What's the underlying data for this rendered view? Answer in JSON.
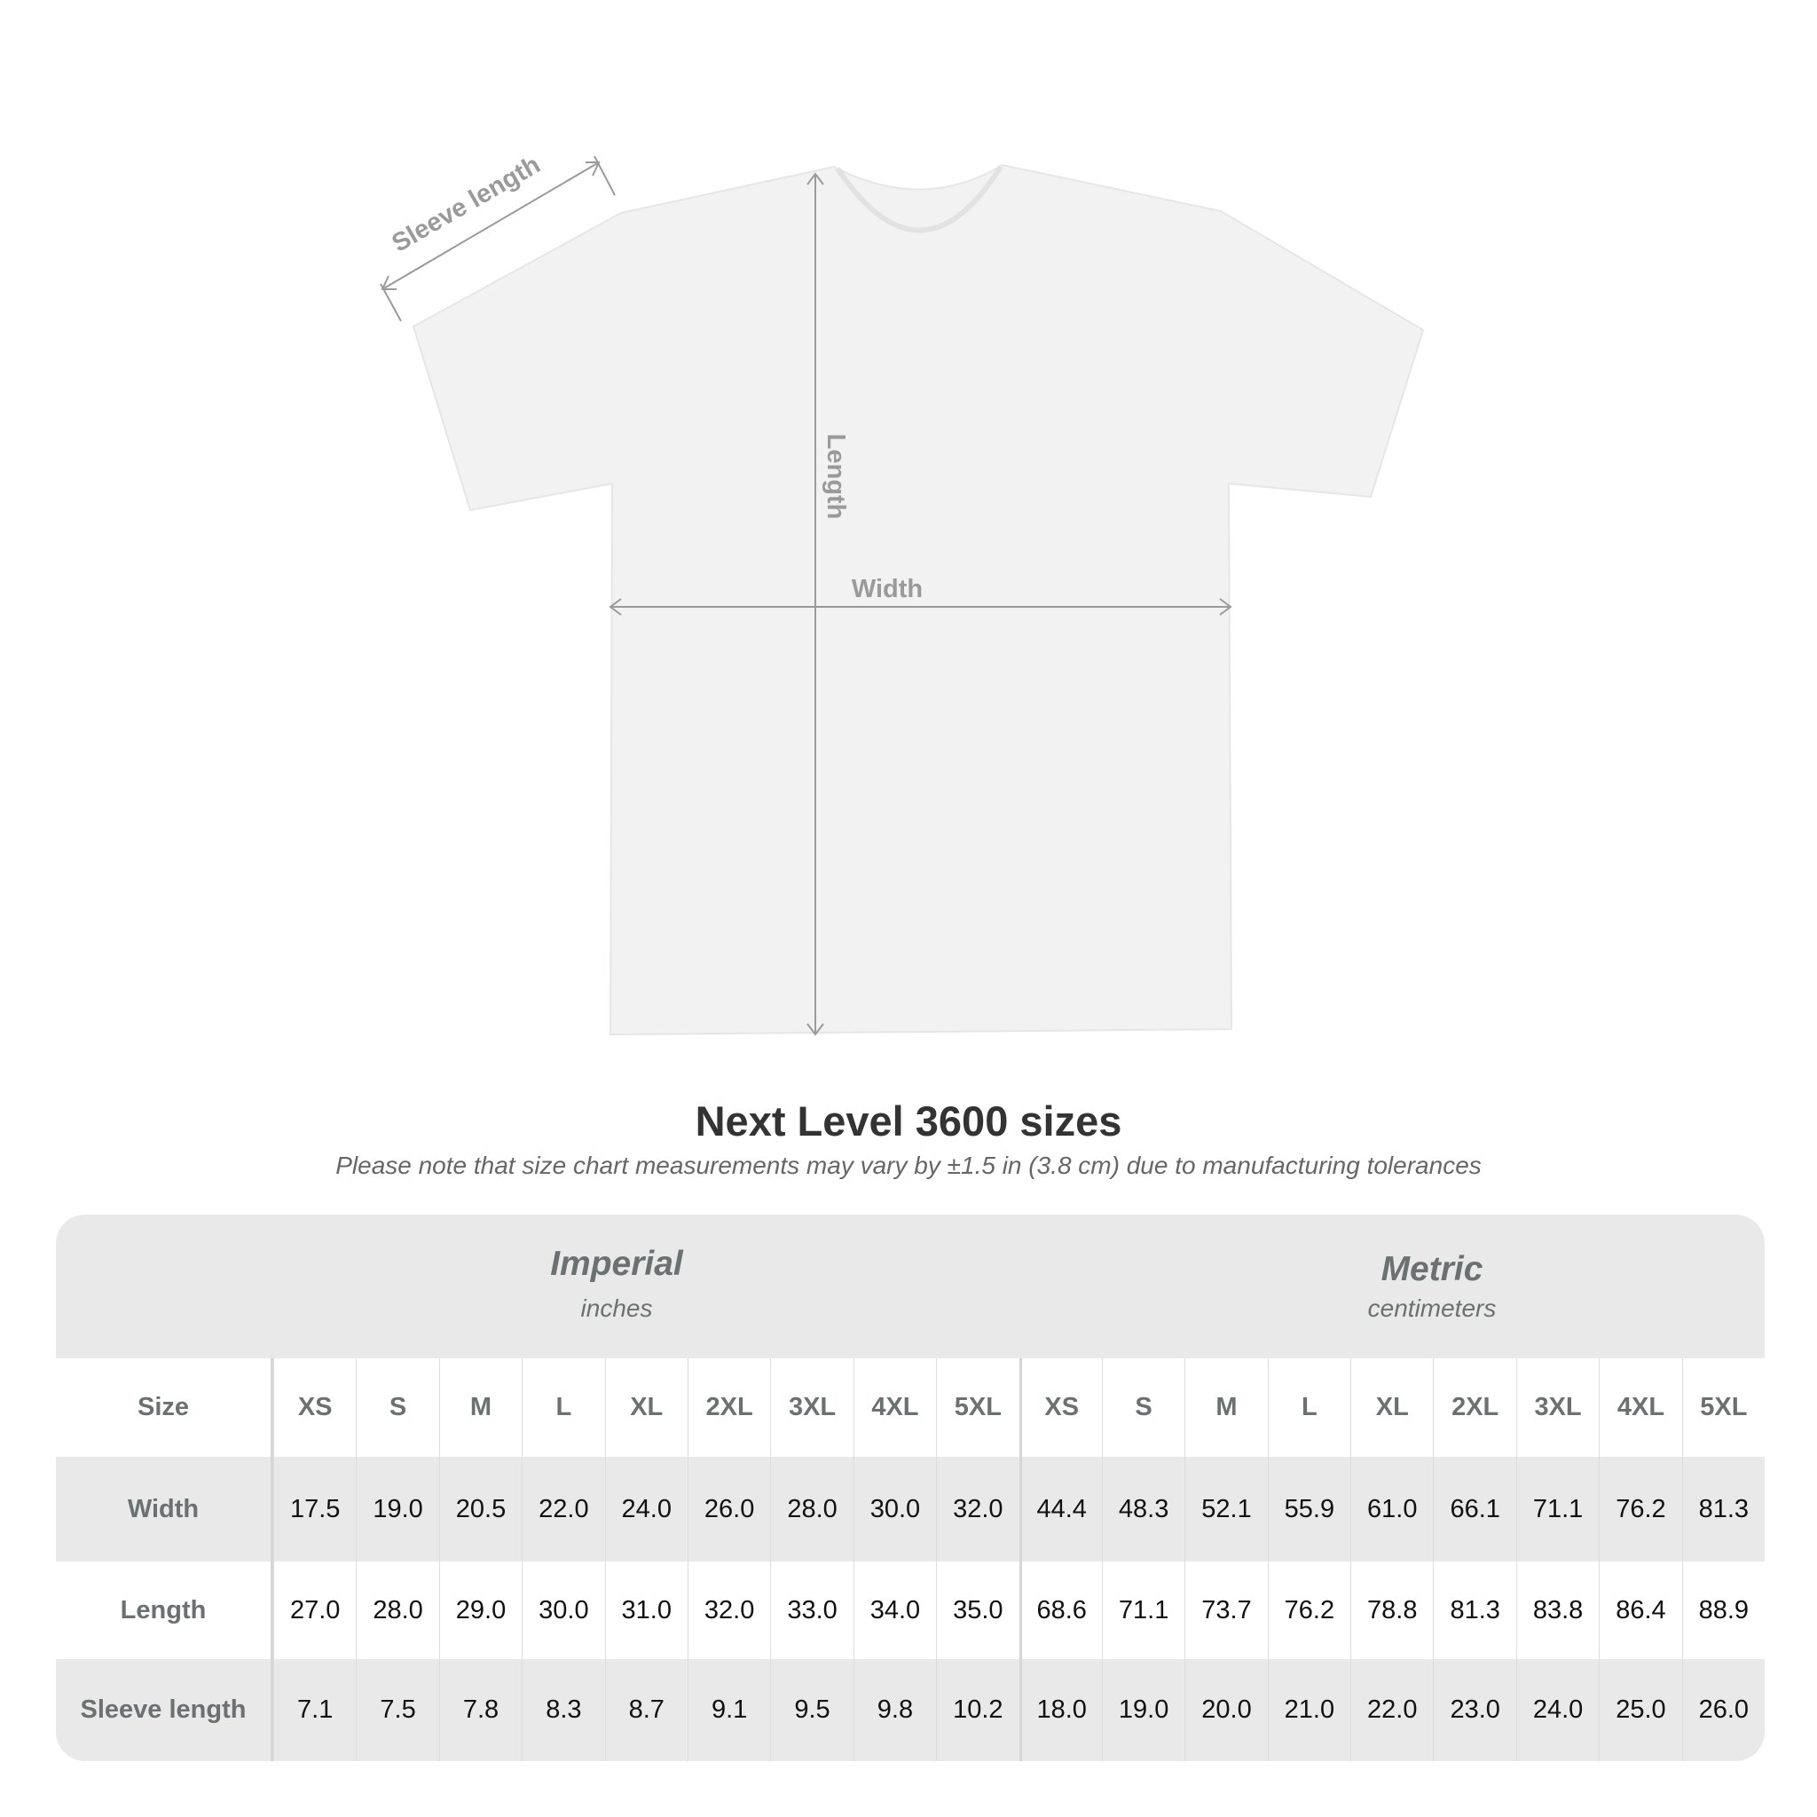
{
  "diagram": {
    "labels": {
      "sleeve": "Sleeve length",
      "length": "Length",
      "width": "Width"
    },
    "colors": {
      "shirt": "#f2f2f2",
      "annotation": "#9a9a9a"
    }
  },
  "title": "Next Level 3600 sizes",
  "subtitle": "Please note that size chart measurements may vary by ±1.5 in (3.8 cm) due to manufacturing tolerances",
  "table": {
    "imperial": {
      "name": "Imperial",
      "unit": "inches"
    },
    "metric": {
      "name": "Metric",
      "unit": "centimeters"
    },
    "size_label": "Size",
    "sizes": [
      "XS",
      "S",
      "M",
      "L",
      "XL",
      "2XL",
      "3XL",
      "4XL",
      "5XL"
    ],
    "rows": [
      {
        "label": "Width",
        "imperial": [
          "17.5",
          "19.0",
          "20.5",
          "22.0",
          "24.0",
          "26.0",
          "28.0",
          "30.0",
          "32.0"
        ],
        "metric": [
          "44.4",
          "48.3",
          "52.1",
          "55.9",
          "61.0",
          "66.1",
          "71.1",
          "76.2",
          "81.3"
        ]
      },
      {
        "label": "Length",
        "imperial": [
          "27.0",
          "28.0",
          "29.0",
          "30.0",
          "31.0",
          "32.0",
          "33.0",
          "34.0",
          "35.0"
        ],
        "metric": [
          "68.6",
          "71.1",
          "73.7",
          "76.2",
          "78.8",
          "81.3",
          "83.8",
          "86.4",
          "88.9"
        ]
      },
      {
        "label": "Sleeve length",
        "imperial": [
          "7.1",
          "7.5",
          "7.8",
          "8.3",
          "8.7",
          "9.1",
          "9.5",
          "9.8",
          "10.2"
        ],
        "metric": [
          "18.0",
          "19.0",
          "20.0",
          "21.0",
          "22.0",
          "23.0",
          "24.0",
          "25.0",
          "26.0"
        ]
      }
    ]
  }
}
